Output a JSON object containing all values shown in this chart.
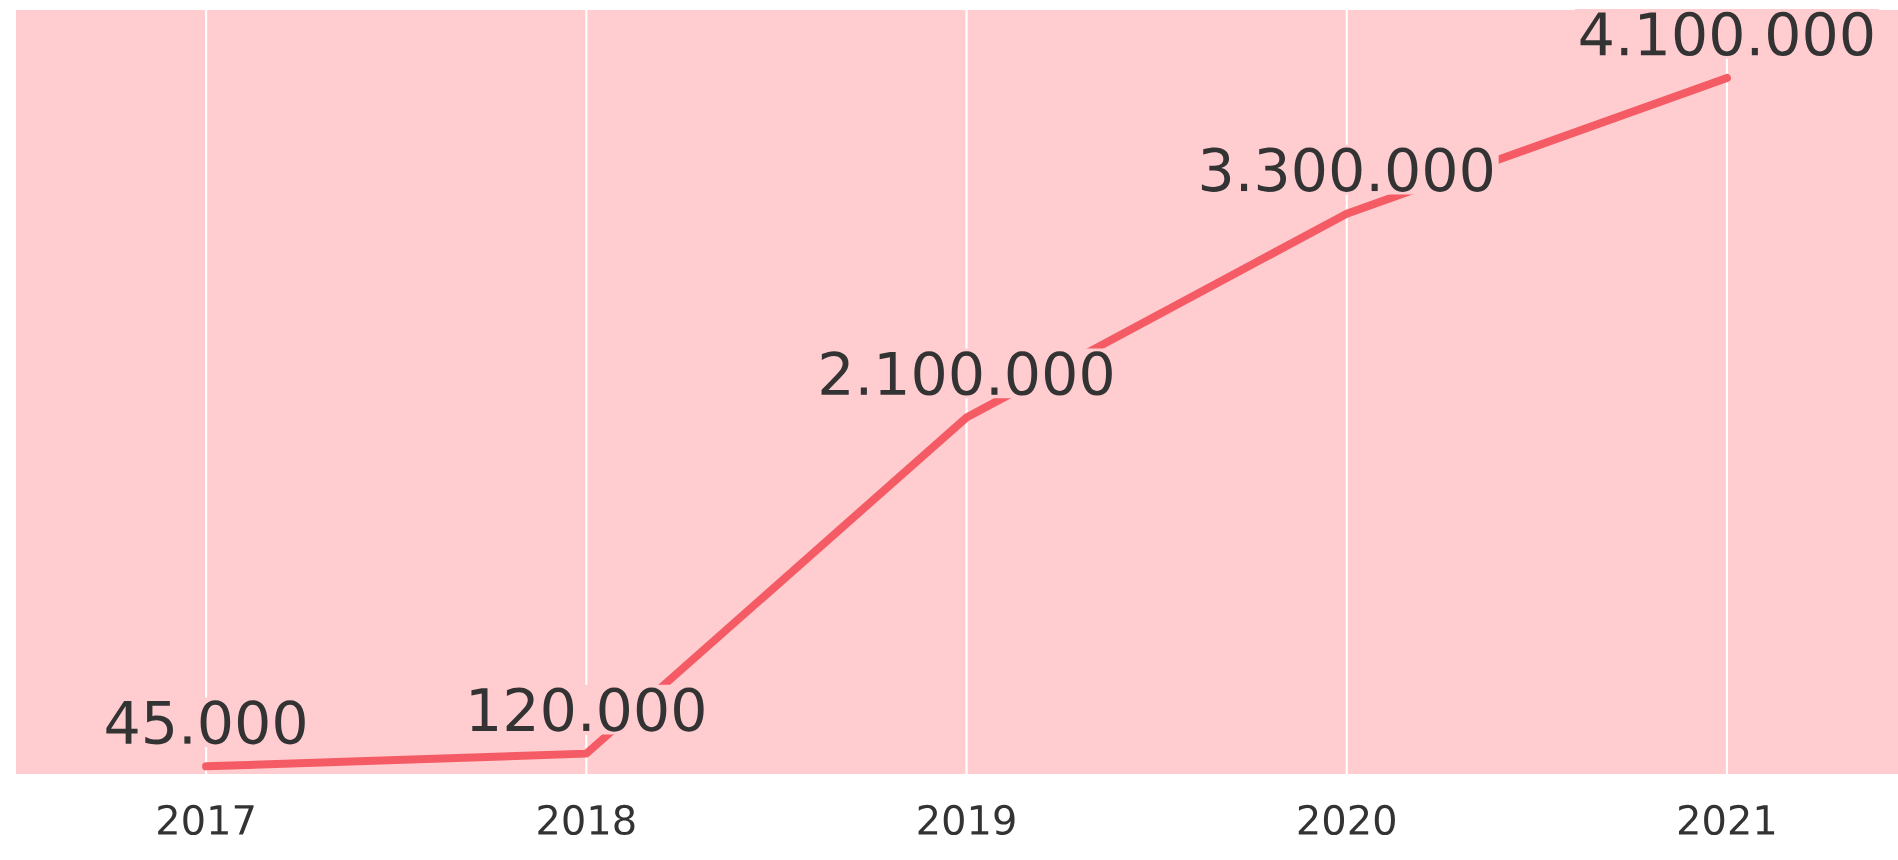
{
  "chart_data": {
    "type": "line",
    "categories": [
      "2017",
      "2018",
      "2019",
      "2020",
      "2021"
    ],
    "values": [
      45000,
      120000,
      2100000,
      3300000,
      4100000
    ],
    "value_labels": [
      "45.000",
      "120.000",
      "2.100.000",
      "3.300.000",
      "4.100.000"
    ],
    "color": "#f45b65",
    "ylim": [
      0,
      4500000
    ],
    "grid": "x",
    "marker": "none",
    "line_style": "solid"
  }
}
